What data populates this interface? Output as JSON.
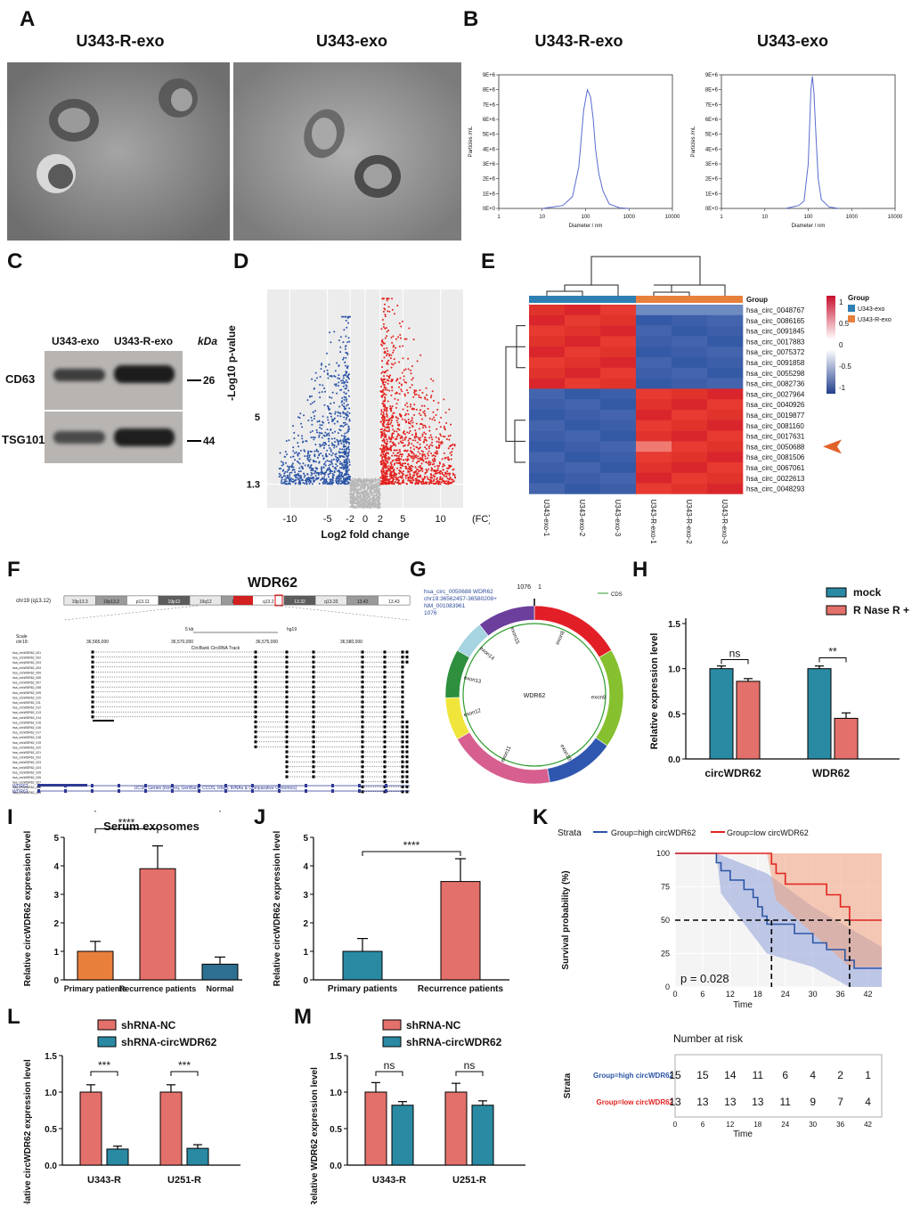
{
  "panels": {
    "A": {
      "letter": "A",
      "titles": [
        "U343-R-exo",
        "U343-exo"
      ]
    },
    "B": {
      "letter": "B",
      "titles": [
        "U343-R-exo",
        "U343-exo"
      ],
      "xlabel": "Diameter / nm",
      "ylabel": "Particles /mL",
      "yticks": [
        "0E+0",
        "1E+6",
        "2E+6",
        "3E+6",
        "4E+6",
        "5E+6",
        "6E+6",
        "7E+6",
        "8E+6",
        "9E+6"
      ],
      "xticks": [
        "1",
        "10",
        "100",
        "1000",
        "10000"
      ]
    },
    "C": {
      "letter": "C",
      "lanes": [
        "U343-exo",
        "U343-R-exo"
      ],
      "unit": "kDa",
      "rows": [
        {
          "label": "CD63",
          "kda": "26"
        },
        {
          "label": "TSG101",
          "kda": "44"
        }
      ]
    },
    "D": {
      "letter": "D",
      "xlabel": "Log2 fold change",
      "ylabel": "-Log10  p-value",
      "xticks": [
        "-10",
        "-5",
        "-2",
        "0",
        "2",
        "5",
        "10"
      ],
      "yticks": [
        "5",
        "1.3"
      ],
      "fc_label": "(FC)"
    },
    "E": {
      "letter": "E",
      "group_label": "Group",
      "legend_title": "Group",
      "legend_items": [
        "U343-exo",
        "U343-R-exo"
      ],
      "scale": [
        "1",
        "0.5",
        "0",
        "-0.5",
        "-1"
      ],
      "rows": [
        "hsa_circ_0048767",
        "hsa_circ_0086165",
        "hsa_circ_0091845",
        "hsa_circ_0017883",
        "hsa_circ_0075372",
        "hsa_circ_0091858",
        "hsa_circ_0055298",
        "hsa_circ_0082736",
        "hsa_circ_0027964",
        "hsa_circ_0040926",
        "hsa_circ_0019877",
        "hsa_circ_0081160",
        "hsa_circ_0017631",
        "hsa_circ_0050688",
        "hsa_circ_0081506",
        "hsa_circ_0067061",
        "hsa_circ_0022613",
        "hsa_circ_0048293"
      ],
      "cols": [
        "U343-exo-1",
        "U343-exo-2",
        "U343-exo-3",
        "U343-R-exo-1",
        "U343-R-exo-2",
        "U343-R-exo-3"
      ]
    },
    "F": {
      "letter": "F",
      "title": "WDR62",
      "chrom": "chr19 (q13.12)",
      "bands": [
        "19p13.3",
        "19p13.2",
        "p13.11",
        "19p12",
        "19q12",
        "13.11",
        "q13.2",
        "13.32",
        "q13.33",
        "13.42",
        "13.43"
      ],
      "scale": "Scale",
      "chr": "chr19:",
      "scalebar": "5 kb",
      "assembly": "hg19",
      "coords": [
        "36,565,000",
        "36,570,000",
        "36,575,000",
        "36,580,000"
      ],
      "track1": "CircBank CircRNA Track",
      "track2": "UCSC Genes (RefSeq, GenBank, CCDS, Rfam, tRNAs & Comparative Genomics)",
      "track3": "RefSeq gene predictions from NCBI",
      "genes": [
        "WDR62",
        "WDR62",
        "WDR62"
      ],
      "refseq": "RefSeq Curated"
    },
    "G": {
      "letter": "G",
      "info": [
        "hsa_circ_0050688  WDR62",
        "chr19:36562457-36580208+",
        "NM_001083961",
        "1076"
      ],
      "top": "1076",
      "one": "1",
      "cds": "CDS",
      "center": "WDR62",
      "exons": [
        "exon8",
        "exon9",
        "exon10",
        "exon11",
        "exon12",
        "exon13",
        "exon14",
        "exon15"
      ]
    },
    "H": {
      "letter": "H",
      "ylabel": "Relative expression level",
      "categories": [
        "circWDR62",
        "WDR62"
      ],
      "legend": [
        "mock",
        "R Nase R +"
      ],
      "sig": [
        "ns",
        "**"
      ],
      "yticks": [
        "0.0",
        "0.5",
        "1.0",
        "1.5"
      ]
    },
    "I": {
      "letter": "I",
      "title": "Serum exosomes",
      "ylabel": "Relative circWDR62 expression level",
      "sig": [
        "****",
        "*"
      ],
      "yticks": [
        "0",
        "1",
        "2",
        "3",
        "4",
        "5"
      ]
    },
    "J": {
      "letter": "J",
      "ylabel": "Relative circWDR62 expression level",
      "sig": [
        "****"
      ],
      "yticks": [
        "0",
        "1",
        "2",
        "3",
        "4",
        "5"
      ]
    },
    "K": {
      "letter": "K",
      "strata": "Strata",
      "legend": [
        "Group=high circWDR62",
        "Group=low circWDR62"
      ],
      "ylabel": "Survival probability (%)",
      "xlabel": "Time",
      "p": "p = 0.028",
      "xticks": [
        "0",
        "6",
        "12",
        "18",
        "24",
        "30",
        "36",
        "42"
      ],
      "yticks": [
        "0",
        "25",
        "50",
        "75",
        "100"
      ],
      "risk_title": "Number at risk",
      "risk_groups": [
        "Group=high circWDR62",
        "Group=low circWDR62"
      ]
    },
    "L": {
      "letter": "L",
      "legend": [
        "shRNA-NC",
        "shRNA-circWDR62"
      ],
      "ylabel": "Relative circWDR62 expression level",
      "sig": [
        "***",
        "***"
      ],
      "yticks": [
        "0.0",
        "0.5",
        "1.0",
        "1.5"
      ]
    },
    "M": {
      "letter": "M",
      "legend": [
        "shRNA-NC",
        "shRNA-circWDR62"
      ],
      "ylabel": "Relative WDR62 expression level",
      "sig": [
        "ns",
        "ns"
      ],
      "yticks": [
        "0.0",
        "0.5",
        "1.0",
        "1.5"
      ]
    }
  },
  "chart_data": [
    {
      "id": "B-left",
      "type": "line",
      "title": "U343-R-exo",
      "xlabel": "Diameter / nm",
      "ylabel": "Particles /mL",
      "xscale": "log",
      "xlim": [
        1,
        10000
      ],
      "ylim": [
        0,
        9000000
      ],
      "x": [
        10,
        30,
        50,
        70,
        90,
        110,
        130,
        150,
        170,
        200,
        250,
        350,
        600,
        1000
      ],
      "y": [
        0,
        200000,
        800000,
        2800000,
        6600000,
        8000000,
        7500000,
        6000000,
        4000000,
        2400000,
        1200000,
        300000,
        50000,
        0
      ]
    },
    {
      "id": "B-right",
      "type": "line",
      "title": "U343-exo",
      "xlabel": "Diameter / nm",
      "ylabel": "Particles /mL",
      "xscale": "log",
      "xlim": [
        1,
        10000
      ],
      "ylim": [
        0,
        9000000
      ],
      "x": [
        30,
        60,
        80,
        100,
        115,
        125,
        135,
        150,
        170,
        200,
        300,
        500
      ],
      "y": [
        0,
        200000,
        500000,
        3000000,
        8000000,
        8900000,
        7800000,
        5000000,
        2000000,
        600000,
        100000,
        0
      ]
    },
    {
      "id": "H",
      "type": "bar",
      "categories": [
        "circWDR62",
        "WDR62"
      ],
      "ylim": [
        0,
        1.5
      ],
      "series": [
        {
          "name": "mock",
          "values": [
            1.0,
            1.0
          ],
          "errors": [
            0.03,
            0.03
          ]
        },
        {
          "name": "R Nase R +",
          "values": [
            0.86,
            0.45
          ],
          "errors": [
            0.03,
            0.06
          ]
        }
      ]
    },
    {
      "id": "I",
      "type": "bar",
      "title": "Serum exosomes",
      "categories": [
        "Primary patients",
        "Recurrence patients",
        "Normal"
      ],
      "values": [
        1.0,
        3.9,
        0.55
      ],
      "errors": [
        0.35,
        0.8,
        0.25
      ],
      "ylim": [
        0,
        5
      ]
    },
    {
      "id": "J",
      "type": "bar",
      "categories": [
        "Primary patients",
        "Recurrence patients"
      ],
      "values": [
        1.0,
        3.45
      ],
      "errors": [
        0.45,
        0.8
      ],
      "ylim": [
        0,
        5
      ]
    },
    {
      "id": "K",
      "type": "line",
      "xlabel": "Time",
      "ylabel": "Survival probability (%)",
      "xlim": [
        0,
        45
      ],
      "ylim": [
        0,
        100
      ],
      "series": [
        {
          "name": "Group=high circWDR62",
          "x": [
            0,
            9,
            10,
            12,
            15,
            17,
            18,
            19,
            20,
            22,
            24,
            26,
            30,
            33,
            37,
            39,
            45
          ],
          "y": [
            100,
            93,
            87,
            80,
            73,
            67,
            60,
            53,
            47,
            47,
            47,
            40,
            33,
            28,
            20,
            14,
            14
          ]
        },
        {
          "name": "Group=low circWDR62",
          "x": [
            0,
            20,
            21,
            22,
            24,
            30,
            33,
            36,
            38,
            45
          ],
          "y": [
            100,
            100,
            92,
            85,
            77,
            77,
            69,
            60,
            50,
            50
          ]
        }
      ]
    },
    {
      "id": "K-risk",
      "type": "table",
      "columns": [
        "0",
        "6",
        "12",
        "18",
        "24",
        "30",
        "36",
        "42"
      ],
      "rows": [
        {
          "name": "Group=high circWDR62",
          "values": [
            15,
            15,
            14,
            11,
            6,
            4,
            2,
            1
          ]
        },
        {
          "name": "Group=low circWDR62",
          "values": [
            13,
            13,
            13,
            13,
            11,
            9,
            7,
            4
          ]
        }
      ]
    },
    {
      "id": "L",
      "type": "bar",
      "categories": [
        "U343-R",
        "U251-R"
      ],
      "ylim": [
        0,
        1.5
      ],
      "series": [
        {
          "name": "shRNA-NC",
          "values": [
            1.0,
            1.0
          ],
          "errors": [
            0.1,
            0.1
          ]
        },
        {
          "name": "shRNA-circWDR62",
          "values": [
            0.22,
            0.23
          ],
          "errors": [
            0.04,
            0.05
          ]
        }
      ]
    },
    {
      "id": "M",
      "type": "bar",
      "categories": [
        "U343-R",
        "U251-R"
      ],
      "ylim": [
        0,
        1.5
      ],
      "series": [
        {
          "name": "shRNA-NC",
          "values": [
            1.0,
            1.0
          ],
          "errors": [
            0.13,
            0.12
          ]
        },
        {
          "name": "shRNA-circWDR62",
          "values": [
            0.82,
            0.82
          ],
          "errors": [
            0.05,
            0.06
          ]
        }
      ]
    }
  ],
  "colors": {
    "teal": "#2a8aa3",
    "salmon": "#e3706a",
    "orange": "#e8803c",
    "blue": "#2c55a6",
    "red": "#e2221f",
    "grey": "#b7b7b7"
  }
}
